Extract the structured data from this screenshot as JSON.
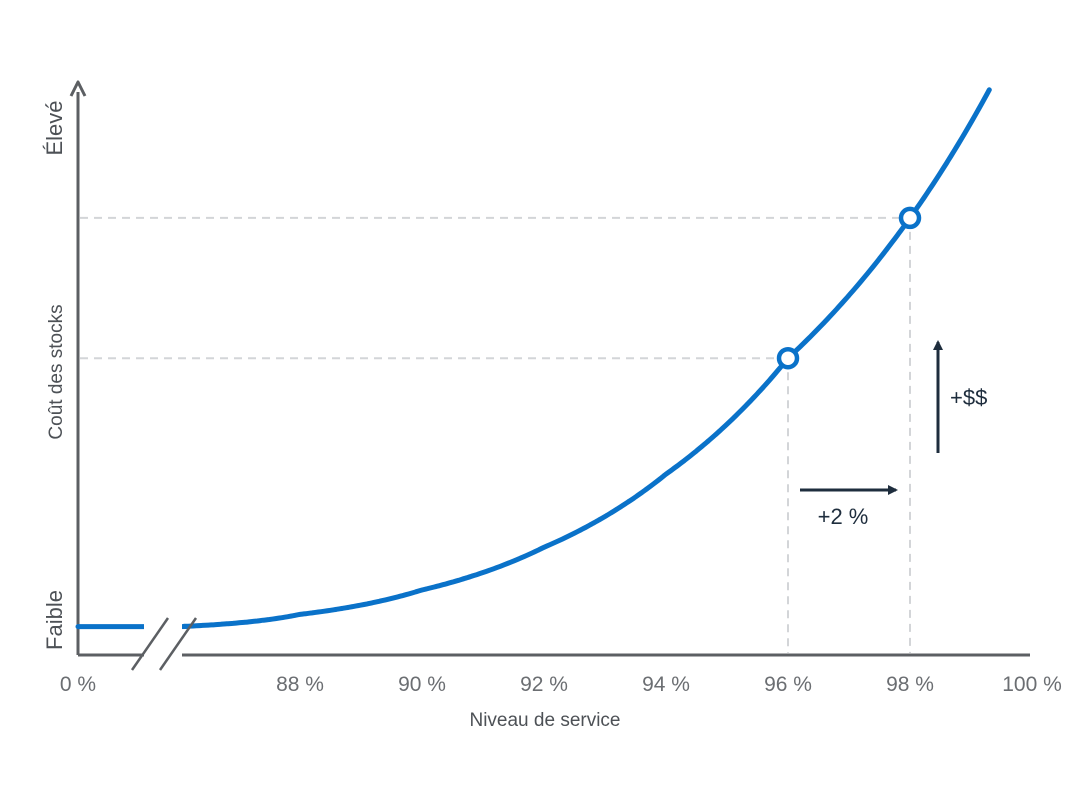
{
  "chart_data": {
    "type": "line",
    "xlabel": "Niveau de service",
    "ylabel": "Coût des stocks",
    "y_high_label": "Élevé",
    "y_low_label": "Faible",
    "x_ticks": [
      "0 %",
      "88 %",
      "90 %",
      "92 %",
      "94 %",
      "96 %",
      "98 %",
      "100 %"
    ],
    "x_axis_break": true,
    "y_scale": "qualitative",
    "series": [
      {
        "color": "#0a72c9",
        "x": [
          0,
          86,
          88,
          90,
          92,
          94,
          96,
          98,
          99.3
        ],
        "y": [
          0.04,
          0.04,
          0.06,
          0.1,
          0.17,
          0.29,
          0.48,
          0.71,
          0.92
        ]
      }
    ],
    "highlight_points": [
      {
        "x": 96,
        "y": 0.48
      },
      {
        "x": 98,
        "y": 0.71
      }
    ],
    "annotations": {
      "x_change_label": "+2 %",
      "y_change_label": "+$$"
    },
    "grid": false
  }
}
